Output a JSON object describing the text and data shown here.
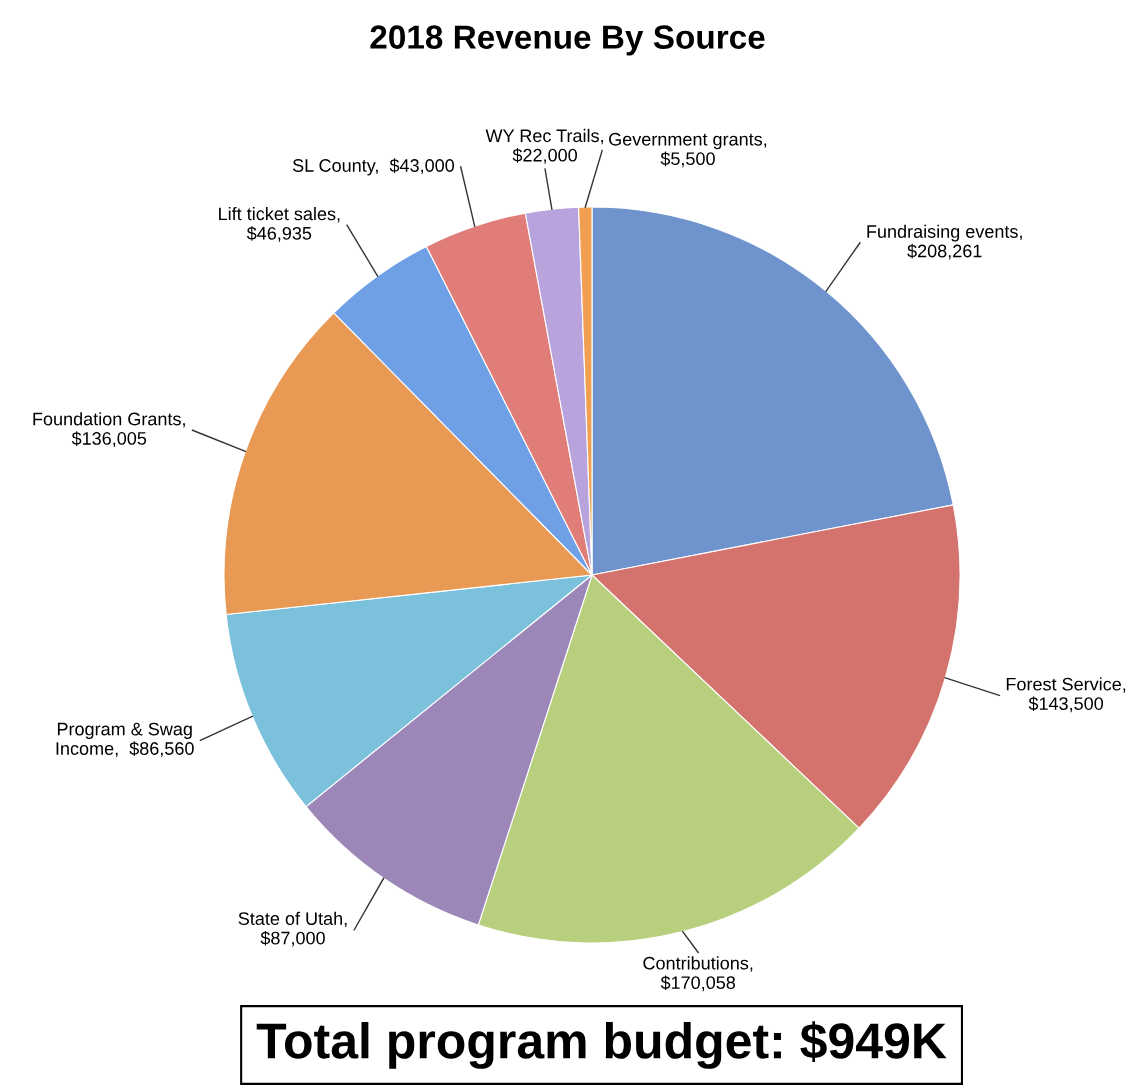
{
  "chart_data": {
    "type": "pie",
    "title": "2018 Revenue By Source",
    "categories": [
      "Fundraising events,\n$208,261",
      "Forest Service,\n$143,500",
      "Contributions,\n$170,058",
      "State of Utah,\n$87,000",
      "Program & Swag\nIncome,  $86,560",
      "Foundation Grants,\n$136,005",
      "Lift ticket sales,\n$46,935",
      "SL County,  $43,000",
      "WY Rec Trails,\n$22,000",
      "Gevernment grants,\n$5,500"
    ],
    "values": [
      208261,
      143500,
      170058,
      87000,
      86560,
      136005,
      46935,
      43000,
      22000,
      5500
    ],
    "colors": [
      "#6f93cc",
      "#d4736e",
      "#b8cf7e",
      "#9c87b8",
      "#7cc1dc",
      "#e89a55",
      "#6fa0e6",
      "#e07d78",
      "#b9a3dc",
      "#f0a050"
    ],
    "annotations": [
      "Total program budget: $949K"
    ]
  }
}
